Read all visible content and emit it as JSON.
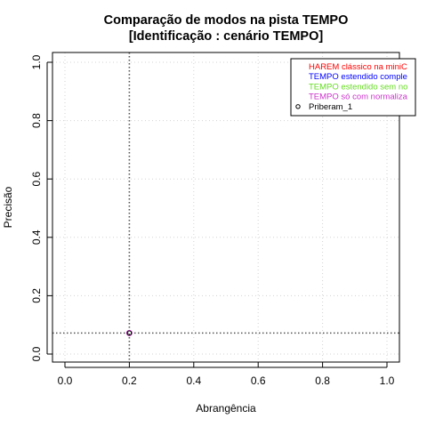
{
  "chart_data": {
    "type": "scatter",
    "title": "Comparação de modos na pista TEMPO",
    "subtitle": "[Identificação : cenário TEMPO]",
    "xlabel": "Abrangência",
    "ylabel": "Precisão",
    "xlim": [
      0.0,
      1.0
    ],
    "ylim": [
      0.0,
      1.0
    ],
    "x_ticks": [
      "0.0",
      "0.2",
      "0.4",
      "0.6",
      "0.8",
      "1.0"
    ],
    "y_ticks": [
      "0.0",
      "0.2",
      "0.4",
      "0.6",
      "0.8",
      "1.0"
    ],
    "grid": true,
    "legend_position": "top-right",
    "legend": [
      {
        "label": "HAREM clássico na miniC",
        "color": "#ff0000",
        "marker": "none"
      },
      {
        "label": "TEMPO estendido comple",
        "color": "#0000ff",
        "marker": "none"
      },
      {
        "label": "TEMPO estendido sem no",
        "color": "#66dd22",
        "marker": "none"
      },
      {
        "label": "TEMPO só com normaliza",
        "color": "#cc33cc",
        "marker": "none"
      },
      {
        "label": "Priberam_1",
        "color": "#000000",
        "marker": "circle"
      }
    ],
    "series": [
      {
        "name": "Priberam_1",
        "x": [
          0.2
        ],
        "y": [
          0.072
        ],
        "color": "#000000"
      }
    ],
    "reference_lines": {
      "x": 0.2,
      "y": 0.072,
      "style": "dotted"
    }
  }
}
